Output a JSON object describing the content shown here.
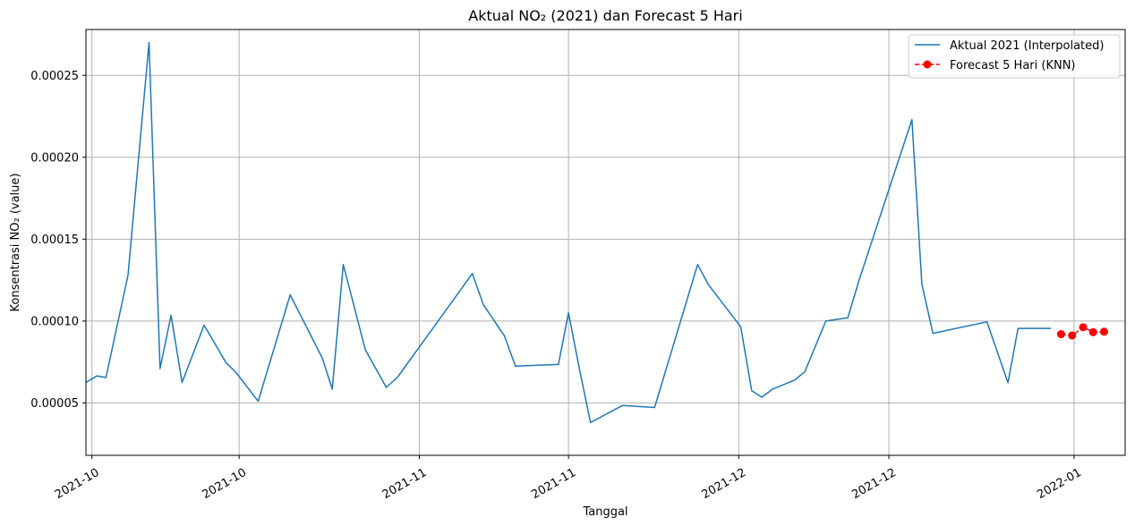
{
  "chart_data": {
    "type": "line",
    "title": "Aktual NO₂ (2021) dan Forecast 5 Hari",
    "xlabel": "Tanggal",
    "ylabel": "Konsentrasi NO₂ (value)",
    "ylim": [
      1.8e-05,
      0.000278
    ],
    "y_ticks": [
      5e-05,
      0.0001,
      0.00015,
      0.0002,
      0.00025
    ],
    "y_tick_labels": [
      "0.00005",
      "0.00010",
      "0.00015",
      "0.00020",
      "0.00025"
    ],
    "x_ticks": [
      0.6,
      15.3,
      33.3,
      48.2,
      65.2,
      80.2,
      98.7
    ],
    "x_tick_labels": [
      "2021-10",
      "2021-10",
      "2021-11",
      "2021-11",
      "2021-12",
      "2021-12",
      "2022-01"
    ],
    "xlim": [
      0,
      103.8
    ],
    "grid": true,
    "legend_position": "top-right",
    "series": [
      {
        "name": "Aktual 2021 (Interpolated)",
        "color": "#1f77b4",
        "style": "solid",
        "marker": "none",
        "points": [
          [
            0,
            6.25e-05
          ],
          [
            1.1,
            6.65e-05
          ],
          [
            2.0,
            6.55e-05
          ],
          [
            4.2,
            0.000128
          ],
          [
            6.3,
            0.00027
          ],
          [
            7.4,
            7.1e-05
          ],
          [
            8.5,
            0.0001035
          ],
          [
            9.6,
            6.25e-05
          ],
          [
            11.8,
            9.75e-05
          ],
          [
            14.0,
            7.45e-05
          ],
          [
            15.0,
            6.85e-05
          ],
          [
            17.2,
            5.1e-05
          ],
          [
            20.4,
            0.000116
          ],
          [
            23.6,
            7.75e-05
          ],
          [
            24.6,
            5.85e-05
          ],
          [
            25.7,
            0.0001345
          ],
          [
            27.9,
            8.25e-05
          ],
          [
            30.0,
            5.95e-05
          ],
          [
            31.1,
            6.55e-05
          ],
          [
            38.6,
            0.000129
          ],
          [
            39.7,
            0.00011
          ],
          [
            41.8,
            9.1e-05
          ],
          [
            42.9,
            7.25e-05
          ],
          [
            47.2,
            7.35e-05
          ],
          [
            48.2,
            0.000105
          ],
          [
            49.3,
            7.05e-05
          ],
          [
            50.4,
            3.8e-05
          ],
          [
            53.6,
            4.85e-05
          ],
          [
            56.8,
            4.72e-05
          ],
          [
            61.1,
            0.0001345
          ],
          [
            62.2,
            0.000122
          ],
          [
            65.4,
            9.65e-05
          ],
          [
            66.5,
            5.75e-05
          ],
          [
            67.5,
            5.35e-05
          ],
          [
            68.6,
            5.85e-05
          ],
          [
            70.8,
            6.4e-05
          ],
          [
            71.8,
            6.9e-05
          ],
          [
            73.9,
            0.0001
          ],
          [
            76.1,
            0.000102
          ],
          [
            77.2,
            0.0001245
          ],
          [
            82.5,
            0.000223
          ],
          [
            83.5,
            0.0001225
          ],
          [
            84.6,
            9.25e-05
          ],
          [
            90.0,
            9.95e-05
          ],
          [
            92.1,
            6.23e-05
          ],
          [
            93.1,
            9.55e-05
          ],
          [
            96.4,
            9.55e-05
          ]
        ]
      },
      {
        "name": "Forecast 5 Hari (KNN)",
        "color": "#ff0000",
        "style": "dashed",
        "marker": "circle",
        "points": [
          [
            97.4,
            9.2e-05
          ],
          [
            98.5,
            9.12e-05
          ],
          [
            99.6,
            9.62e-05
          ],
          [
            100.6,
            9.32e-05
          ],
          [
            101.7,
            9.35e-05
          ]
        ]
      }
    ]
  }
}
